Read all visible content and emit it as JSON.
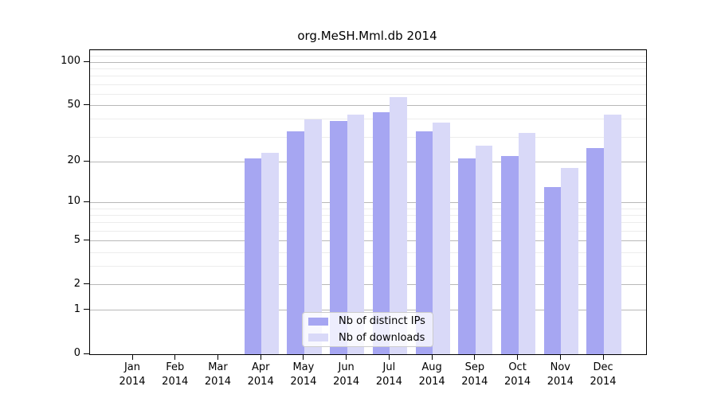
{
  "title": "org.MeSH.Mml.db 2014",
  "chart_data": {
    "type": "bar",
    "title": "org.MeSH.Mml.db 2014",
    "categories": [
      "Jan",
      "Feb",
      "Mar",
      "Apr",
      "May",
      "Jun",
      "Jul",
      "Aug",
      "Sep",
      "Oct",
      "Nov",
      "Dec"
    ],
    "year_label": "2014",
    "series": [
      {
        "name": "Nb of distinct IPs",
        "key": "distinct-ips",
        "color": "#a6a6f2",
        "values": [
          0,
          0,
          0,
          21,
          33,
          39,
          45,
          33,
          21,
          22,
          13,
          25
        ]
      },
      {
        "name": "Nb of downloads",
        "key": "downloads",
        "color": "#d9d9f8",
        "values": [
          0,
          0,
          0,
          23,
          40,
          43,
          57,
          38,
          26,
          32,
          18,
          43
        ]
      }
    ],
    "xlabel": "",
    "ylabel": "",
    "y_scale": "log10(1+x)",
    "y_ticks_major": [
      0,
      1,
      2,
      5,
      10,
      20,
      50,
      100
    ],
    "y_ticks_minor": [
      3,
      4,
      6,
      7,
      8,
      9,
      30,
      40,
      60,
      70,
      80,
      90,
      110,
      120
    ],
    "ylim": [
      0,
      122
    ],
    "grid": true,
    "legend_position": "bottom-center"
  }
}
